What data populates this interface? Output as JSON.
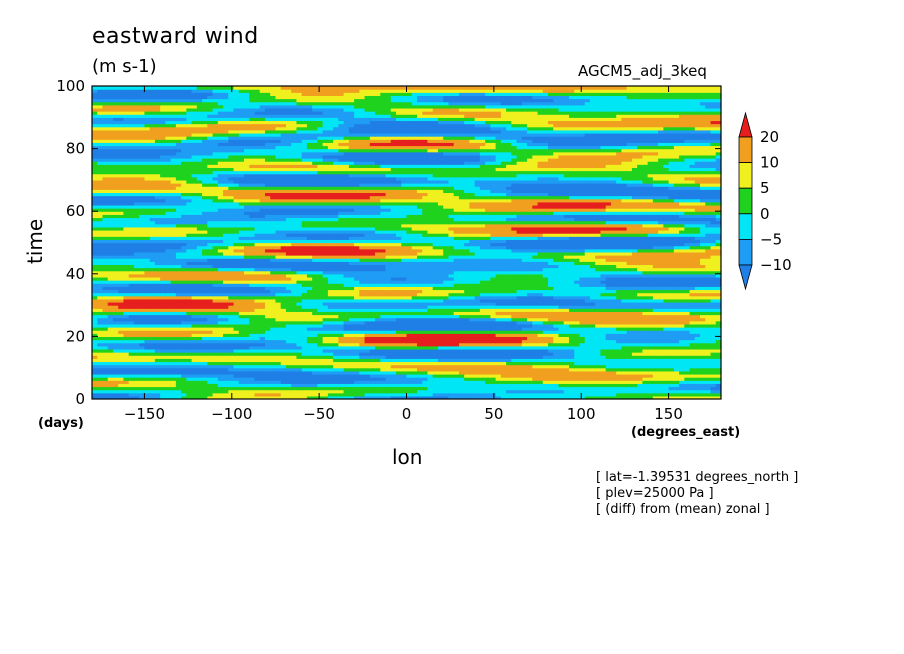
{
  "chart_data": {
    "type": "heatmap",
    "title": "eastward wind",
    "units": "(m s-1)",
    "run_name": "AGCM5_adj_3keq",
    "xlabel": "lon",
    "ylabel": "time",
    "xunit": "(degrees_east)",
    "yunit": "(days)",
    "xlim": [
      -180,
      180
    ],
    "ylim": [
      0,
      100
    ],
    "x_ticks": [
      -150,
      -100,
      -50,
      0,
      50,
      100,
      150
    ],
    "y_ticks": [
      0,
      20,
      40,
      60,
      80,
      100
    ],
    "colorbar": {
      "levels": [
        -10,
        -5,
        0,
        5,
        10,
        20
      ],
      "labels": [
        "20",
        "10",
        "5",
        "0",
        "-5",
        "-10"
      ],
      "colors": {
        "below_-10": "#1f7fe6",
        "-10_to_-5": "#1f9df5",
        "-5_to_0": "#00e6f5",
        "0_to_5": "#1ed21e",
        "5_to_10": "#f0f01e",
        "10_to_20": "#f0a01e",
        "above_20": "#e61e1e"
      }
    },
    "notes": [
      "[ lat=-1.39531 degrees_north ]",
      "[ plev=25000 Pa ]",
      "[ (diff) from (mean) zonal ]"
    ]
  }
}
